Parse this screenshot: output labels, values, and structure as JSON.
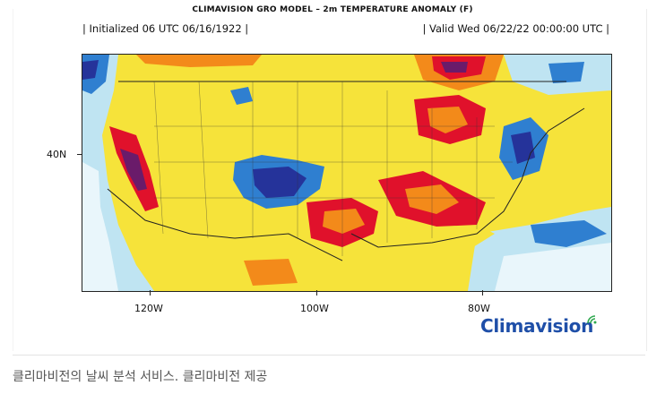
{
  "header": {
    "title": "CLIMAVISION GRO MODEL – 2m TEMPERATURE ANOMALY (F)",
    "initialized": "| Initialized 06 UTC 06/16/1922 |",
    "valid": "| Valid Wed 06/22/22 00:00:00 UTC |"
  },
  "map": {
    "region": "Continental United States",
    "variable": "2m temperature anomaly",
    "unit": "F",
    "lat_labels": [
      "40N"
    ],
    "lon_labels": [
      "120W",
      "100W",
      "80W"
    ],
    "colors": {
      "hot_extreme": "#6a1b6a",
      "hot_strong": "#e0112b",
      "hot": "#f38a1a",
      "warm": "#f6e33a",
      "cool": "#a9dcef",
      "cold": "#2f7fd0",
      "cold_extreme": "#25339a"
    }
  },
  "branding": {
    "logo_prefix": "Clima",
    "logo_suffix": "vision"
  },
  "caption": "클리마비전의 날씨 분석 서비스. 클리마비전 제공"
}
